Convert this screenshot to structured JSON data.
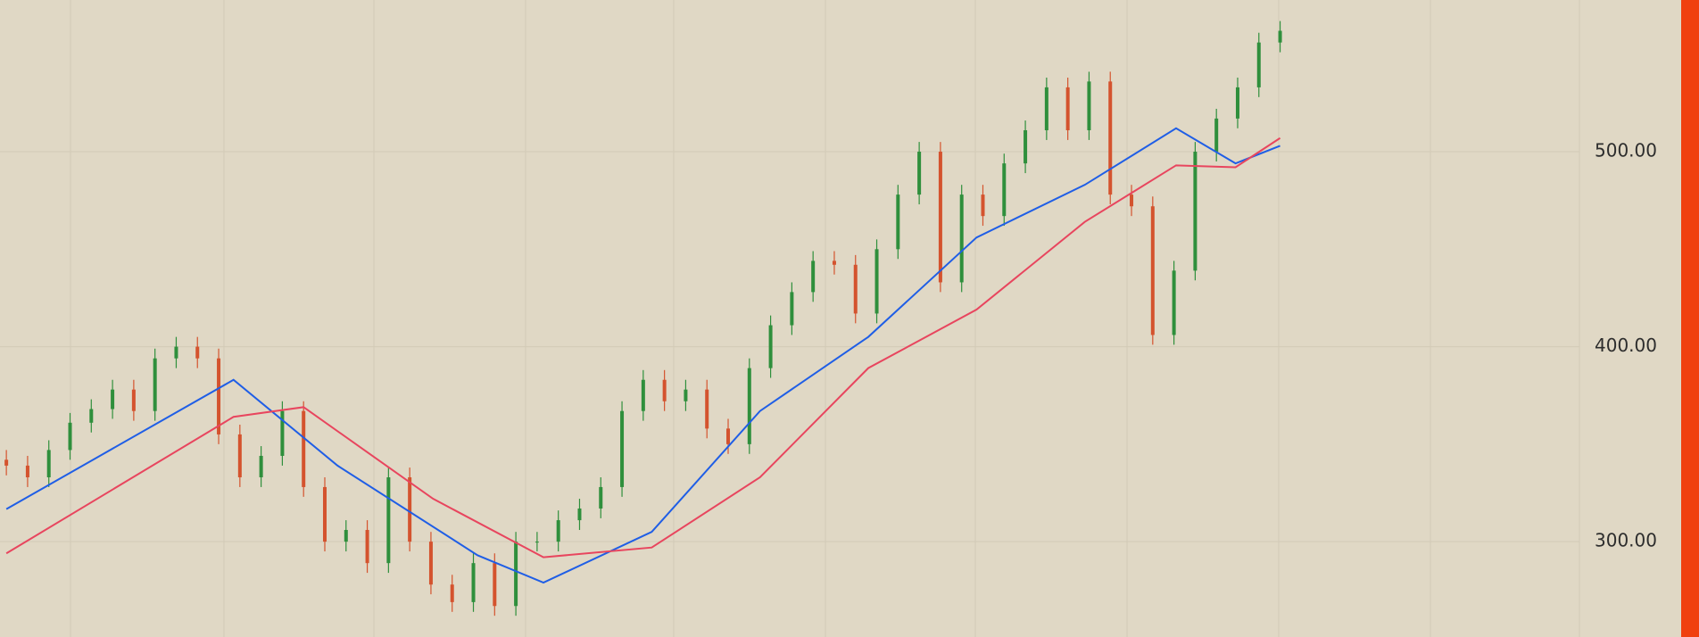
{
  "chart_data": {
    "type": "candlestick",
    "open": [
      342,
      339,
      333,
      347,
      361,
      368,
      378,
      367,
      394,
      400,
      394,
      355,
      333,
      344,
      367,
      328,
      300,
      306,
      289,
      333,
      300,
      278,
      269,
      289,
      267,
      300,
      300,
      311,
      317,
      328,
      367,
      383,
      372,
      378,
      358,
      350,
      389,
      411,
      428,
      444,
      442,
      417,
      450,
      478,
      500,
      433,
      478,
      467,
      494,
      511,
      533,
      511,
      536,
      478,
      472,
      406,
      439,
      500,
      517,
      533,
      556
    ],
    "high": [
      347,
      344,
      352,
      366,
      373,
      383,
      383,
      399,
      405,
      405,
      399,
      360,
      349,
      372,
      372,
      333,
      311,
      311,
      338,
      338,
      305,
      283,
      294,
      294,
      305,
      305,
      316,
      322,
      333,
      372,
      388,
      388,
      383,
      383,
      363,
      394,
      416,
      433,
      449,
      449,
      447,
      455,
      483,
      505,
      505,
      483,
      483,
      499,
      516,
      538,
      538,
      541,
      541,
      483,
      477,
      444,
      505,
      522,
      538,
      561,
      567
    ],
    "low": [
      334,
      328,
      328,
      342,
      356,
      363,
      362,
      362,
      389,
      389,
      350,
      328,
      328,
      339,
      323,
      295,
      295,
      284,
      284,
      295,
      273,
      264,
      264,
      262,
      262,
      295,
      295,
      306,
      312,
      323,
      362,
      367,
      367,
      353,
      345,
      345,
      384,
      406,
      423,
      437,
      412,
      412,
      445,
      473,
      428,
      428,
      462,
      462,
      489,
      506,
      506,
      506,
      473,
      467,
      401,
      401,
      434,
      495,
      512,
      528,
      551
    ],
    "close": [
      339,
      333,
      347,
      361,
      368,
      378,
      367,
      394,
      400,
      394,
      355,
      333,
      344,
      367,
      328,
      300,
      306,
      289,
      333,
      300,
      278,
      269,
      289,
      267,
      300,
      300,
      311,
      317,
      328,
      367,
      383,
      372,
      378,
      358,
      350,
      389,
      411,
      428,
      444,
      442,
      417,
      450,
      478,
      500,
      433,
      478,
      467,
      494,
      511,
      533,
      511,
      536,
      478,
      472,
      406,
      439,
      500,
      517,
      533,
      556,
      562
    ],
    "up_color": "#2f8f3c",
    "down_color": "#d4532e",
    "series": [
      {
        "color": "#1f5ee6",
        "x": [
          0,
          10.7,
          15.6,
          22.2,
          25.3,
          30.4,
          35.5,
          40.6,
          45.7,
          50.8,
          55.1,
          57.9,
          60
        ],
        "values": [
          316.7,
          383,
          339,
          293,
          279,
          305,
          367,
          405,
          456,
          483,
          512,
          494,
          503
        ]
      },
      {
        "color": "#e8455e",
        "x": [
          0,
          10.7,
          14,
          20.1,
          25.3,
          30.4,
          35.5,
          40.6,
          45.7,
          50.8,
          55.1,
          57.9,
          60
        ],
        "values": [
          294,
          364,
          369,
          322,
          292,
          297,
          333,
          389,
          419,
          464,
          493,
          492,
          507
        ]
      }
    ],
    "xlim": [
      -0.3,
      74.1
    ],
    "ylim": [
      251.1,
      577.8
    ],
    "yticks": [
      {
        "value": 300,
        "label": "300.00"
      },
      {
        "value": 400,
        "label": "400.00"
      },
      {
        "value": 500,
        "label": "500.00"
      }
    ],
    "grid": true
  }
}
